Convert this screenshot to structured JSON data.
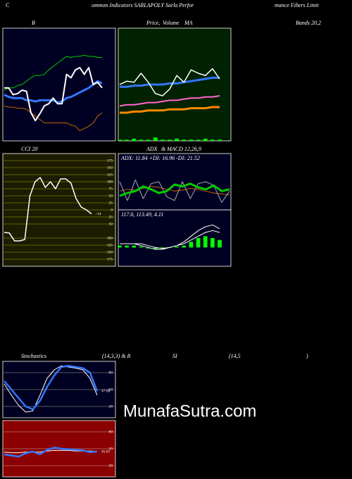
{
  "header": [
    "C",
    "ommon Indicators SARLAPOLY Sarla Perfor",
    "mance  Fibers Limit"
  ],
  "watermark": "MunafaSutra.com",
  "chart_data": [
    {
      "type": "line",
      "title_parts": [
        "B",
        "Bands 20,2"
      ],
      "background": "#000022",
      "ylim": [
        0,
        100
      ],
      "series": [
        {
          "color": "#00cc00",
          "width": 1,
          "values": [
            45,
            47,
            47,
            49,
            50,
            53,
            56,
            58,
            58,
            59,
            63,
            66,
            69,
            72,
            75,
            74,
            75,
            75,
            76,
            75,
            75,
            74,
            74
          ]
        },
        {
          "color": "#cc6600",
          "width": 1,
          "values": [
            31,
            30,
            30,
            29,
            29,
            28,
            25,
            22,
            19,
            16,
            16,
            16,
            16,
            16,
            16,
            14,
            13,
            9,
            11,
            13,
            16,
            22,
            25
          ]
        },
        {
          "color": "#3377ff",
          "width": 3,
          "values": [
            41,
            39,
            38,
            38,
            38,
            36,
            36,
            35,
            36,
            36,
            36,
            36,
            34,
            35,
            38,
            39,
            41,
            43,
            45,
            47,
            50,
            53,
            51
          ]
        },
        {
          "color": "#ffffff",
          "width": 2,
          "values": [
            47,
            47,
            41,
            42,
            45,
            44,
            25,
            18,
            24,
            31,
            33,
            38,
            33,
            33,
            59,
            56,
            63,
            65,
            59,
            65,
            50,
            52,
            47
          ]
        }
      ]
    },
    {
      "type": "line",
      "title_parts": [
        "Price,",
        "Volume",
        "MA"
      ],
      "background": "#002200",
      "ylim": [
        0,
        100
      ],
      "series": [
        {
          "color": "#00ff00",
          "kind": "bar",
          "values": [
            1,
            1,
            2,
            1,
            1,
            3,
            1,
            1,
            2,
            1,
            1,
            1,
            2,
            1,
            1
          ]
        },
        {
          "color": "#ff8800",
          "width": 3,
          "values": [
            25,
            25,
            26,
            26,
            27,
            27,
            27,
            28,
            28,
            28,
            29,
            29,
            29,
            30,
            30
          ]
        },
        {
          "color": "#ff66cc",
          "width": 2,
          "values": [
            31,
            32,
            32,
            33,
            34,
            34,
            35,
            36,
            36,
            37,
            38,
            38,
            39,
            39,
            40
          ]
        },
        {
          "color": "#3377ff",
          "width": 3,
          "values": [
            48,
            48,
            49,
            49,
            50,
            50,
            50,
            51,
            51,
            52,
            53,
            54,
            55,
            56,
            56
          ]
        },
        {
          "color": "#ffffff",
          "width": 1.5,
          "values": [
            50,
            53,
            52,
            60,
            52,
            42,
            40,
            46,
            58,
            52,
            63,
            60,
            58,
            64,
            55
          ]
        }
      ]
    },
    {
      "type": "line",
      "title": "CCI 20",
      "background": "#1c1c00",
      "grid": true,
      "grid_color": "#777700",
      "ylim": [
        -200,
        200
      ],
      "yticks": [
        175,
        150,
        125,
        100,
        75,
        50,
        25,
        0,
        {
          "value": -25,
          "label": "25"
        },
        {
          "value": -50,
          "label": "50"
        },
        {
          "value": -100,
          "label": "100"
        },
        {
          "value": -125,
          "label": "125"
        },
        {
          "value": -150,
          "label": "150"
        },
        {
          "value": -175,
          "label": "175"
        }
      ],
      "series": [
        {
          "color": "#ffffff",
          "width": 1.5,
          "label_last": true,
          "values": [
            -80,
            -82,
            -110,
            -110,
            -105,
            50,
            100,
            115,
            80,
            100,
            75,
            110,
            110,
            95,
            40,
            10,
            0,
            -14
          ]
        }
      ]
    },
    {
      "type": "line",
      "title_parts": [
        "ADX",
        "& MACD 12,26,9"
      ],
      "info": "ADX: 11.84  +DI: 16.96  -DI: 21.52",
      "background": "#000022",
      "ylim": [
        0,
        60
      ],
      "series": [
        {
          "color": "#cc6600",
          "width": 1,
          "values": [
            20,
            22,
            21,
            23,
            25,
            24,
            22,
            20,
            21,
            23,
            22,
            20,
            18,
            17,
            16
          ]
        },
        {
          "color": "#aaaaaa",
          "width": 1,
          "values": [
            30,
            10,
            32,
            12,
            28,
            30,
            14,
            10,
            30,
            12,
            28,
            30,
            26,
            8,
            20
          ]
        },
        {
          "color": "#00cc00",
          "width": 3,
          "values": [
            15,
            18,
            20,
            25,
            22,
            18,
            20,
            27,
            25,
            28,
            24,
            22,
            26,
            20,
            22
          ]
        }
      ]
    },
    {
      "type": "line",
      "info": "117.6,  113.49,  4.11",
      "background": "#000022",
      "ylim": [
        -10,
        20
      ],
      "series": [
        {
          "color": "#00ff00",
          "kind": "bar",
          "values": [
            1,
            1,
            1,
            0.5,
            -0.5,
            -1,
            -0.5,
            0,
            0.5,
            1,
            3,
            5,
            6,
            5,
            4
          ]
        },
        {
          "color": "#ffffff",
          "width": 1,
          "values": [
            2,
            2,
            2,
            1,
            0,
            -1,
            -1,
            0,
            1,
            3,
            6,
            9,
            11,
            12,
            10
          ]
        },
        {
          "color": "#ffffff",
          "width": 1,
          "values": [
            2,
            2,
            2,
            2,
            1,
            0,
            -0.5,
            0,
            1,
            2,
            4,
            6,
            8,
            9,
            8
          ]
        }
      ]
    },
    {
      "type": "line",
      "title_parts": [
        "Stochastics",
        "(14,3,3) & R",
        "SI",
        "(14,5",
        ")"
      ],
      "background": "#000022",
      "grid": true,
      "grid_color": "#777777",
      "ylim": [
        0,
        100
      ],
      "yticks": [
        80,
        50,
        20
      ],
      "series": [
        {
          "color": "#ffffff",
          "width": 1,
          "values": [
            60,
            40,
            22,
            10,
            12,
            40,
            70,
            85,
            92,
            90,
            88,
            85,
            70,
            40
          ]
        },
        {
          "color": "#3377ff",
          "width": 2.5,
          "label_last": true,
          "values": [
            65,
            50,
            35,
            20,
            15,
            30,
            55,
            75,
            90,
            92,
            90,
            88,
            80,
            47.06
          ]
        }
      ]
    },
    {
      "type": "line",
      "background": "#8b0000",
      "grid": true,
      "grid_color": "#bb7777",
      "ylim": [
        0,
        100
      ],
      "yticks": [
        80,
        50,
        20
      ],
      "series": [
        {
          "color": "#ffffff",
          "width": 1,
          "values": [
            44,
            43,
            43,
            44,
            44,
            44,
            46,
            47,
            47,
            47,
            46,
            46,
            46,
            45
          ]
        },
        {
          "color": "#3377ff",
          "width": 2.5,
          "label_last": true,
          "values": [
            40,
            38,
            36,
            42,
            45,
            40,
            48,
            52,
            50,
            49,
            48,
            47,
            44,
            45.01
          ]
        }
      ]
    }
  ]
}
